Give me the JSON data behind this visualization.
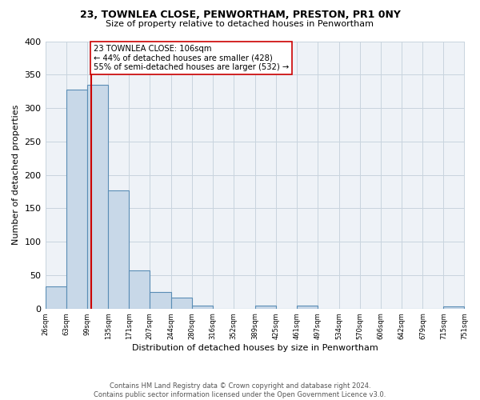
{
  "title1": "23, TOWNLEA CLOSE, PENWORTHAM, PRESTON, PR1 0NY",
  "title2": "Size of property relative to detached houses in Penwortham",
  "xlabel": "Distribution of detached houses by size in Penwortham",
  "ylabel": "Number of detached properties",
  "bin_edges": [
    26,
    63,
    99,
    135,
    171,
    207,
    244,
    280,
    316,
    352,
    389,
    425,
    461,
    497,
    534,
    570,
    606,
    642,
    679,
    715,
    751
  ],
  "bar_heights": [
    33,
    327,
    335,
    177,
    57,
    25,
    16,
    5,
    0,
    0,
    4,
    0,
    5,
    0,
    0,
    0,
    0,
    0,
    0,
    3
  ],
  "bar_color": "#c8d8e8",
  "bar_edge_color": "#5a8db5",
  "vline_x": 106,
  "vline_color": "#cc0000",
  "annotation_text": "23 TOWNLEA CLOSE: 106sqm\n← 44% of detached houses are smaller (428)\n55% of semi-detached houses are larger (532) →",
  "annotation_box_color": "#ffffff",
  "annotation_box_edge": "#cc0000",
  "ylim": [
    0,
    400
  ],
  "yticks": [
    0,
    50,
    100,
    150,
    200,
    250,
    300,
    350,
    400
  ],
  "footer_text": "Contains HM Land Registry data © Crown copyright and database right 2024.\nContains public sector information licensed under the Open Government Licence v3.0.",
  "tick_labels": [
    "26sqm",
    "63sqm",
    "99sqm",
    "135sqm",
    "171sqm",
    "207sqm",
    "244sqm",
    "280sqm",
    "316sqm",
    "352sqm",
    "389sqm",
    "425sqm",
    "461sqm",
    "497sqm",
    "534sqm",
    "570sqm",
    "606sqm",
    "642sqm",
    "679sqm",
    "715sqm",
    "751sqm"
  ],
  "bg_color": "#eef2f7"
}
